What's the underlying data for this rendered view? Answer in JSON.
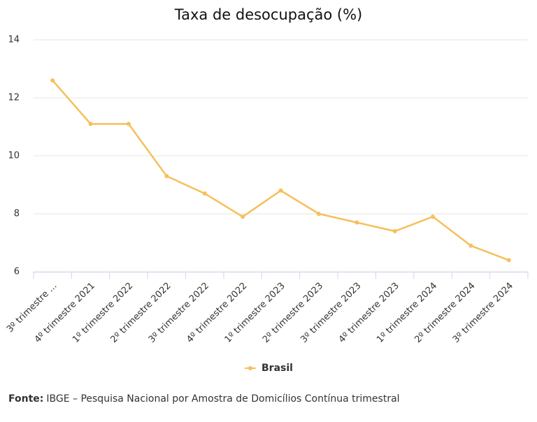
{
  "chart_data": {
    "type": "line",
    "title": "Taxa de desocupação (%)",
    "categories": [
      "3º trimestre ...",
      "4º trimestre 2021",
      "1º trimestre 2022",
      "2º trimestre 2022",
      "3º trimestre 2022",
      "4º trimestre 2022",
      "1º trimestre 2023",
      "2º trimestre 2023",
      "3º trimestre 2023",
      "4º trimestre 2023",
      "1º trimestre 2024",
      "2º trimestre 2024",
      "3º trimestre 2024"
    ],
    "series": [
      {
        "name": "Brasil",
        "color": "#f5c05a",
        "values": [
          12.6,
          11.1,
          11.1,
          9.3,
          8.7,
          7.9,
          8.8,
          8.0,
          7.7,
          7.4,
          7.9,
          6.9,
          6.4
        ]
      }
    ],
    "ylim": [
      6,
      14
    ],
    "yticks": [
      6,
      8,
      10,
      12,
      14
    ],
    "grid": true,
    "legend": "bottom",
    "source_label": "Fonte:",
    "source_text": "IBGE – Pesquisa Nacional por Amostra de Domicílios Contínua trimestral"
  }
}
